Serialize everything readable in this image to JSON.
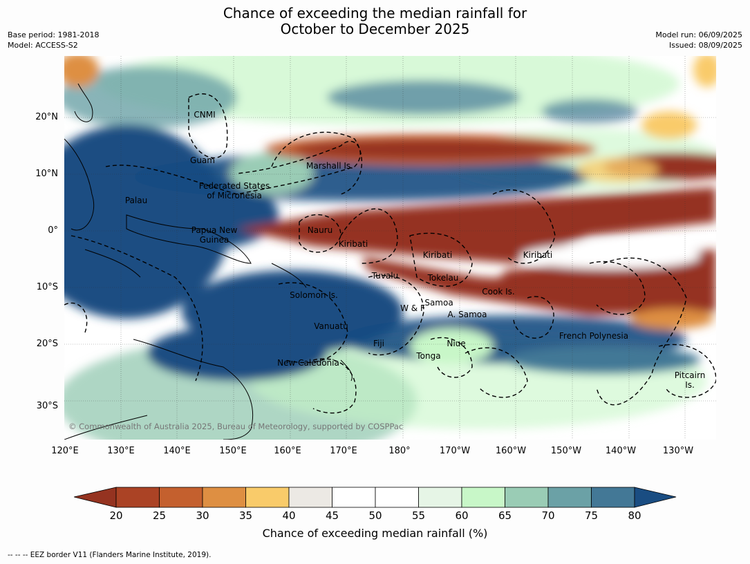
{
  "title_line1": "Chance of exceeding the median rainfall for",
  "title_line2": "October to December 2025",
  "meta_left": [
    "Base period: 1981-2018",
    "Model: ACCESS-S2"
  ],
  "meta_right": [
    "Model run: 06/09/2025",
    "Issued: 08/09/2025"
  ],
  "map": {
    "lat_ticks": [
      "20°N",
      "10°N",
      "0°",
      "10°S",
      "20°S",
      "30°S"
    ],
    "lon_ticks": [
      "120°E",
      "130°E",
      "140°E",
      "150°E",
      "160°E",
      "170°E",
      "180°",
      "170°W",
      "160°W",
      "150°W",
      "140°W",
      "130°W"
    ],
    "regions": [
      "CNMI",
      "Guam",
      "Marshall Is.",
      "Federated States\nof Micronesia",
      "Palau",
      "Papua New\nGuinea",
      "Nauru",
      "Kiribati",
      "Kiribati",
      "Kiribati",
      "Tuvalu",
      "Tokelau",
      "Cook Is.",
      "Solomon Is.",
      "Samoa",
      "W & F",
      "A. Samoa",
      "Vanuatu",
      "Fiji",
      "Niue",
      "Tonga",
      "French Polynesia",
      "New Caledonia",
      "Pitcairn\nIs."
    ],
    "copyright": "© Commonwealth of Australia 2025, Bureau of Meteorology, supported by COSPPac"
  },
  "colorbar": {
    "ticks": [
      "20",
      "25",
      "30",
      "35",
      "40",
      "45",
      "50",
      "55",
      "60",
      "65",
      "70",
      "75",
      "80"
    ],
    "colors": [
      "#953320",
      "#ab4325",
      "#c4602e",
      "#de8f42",
      "#f9cb6a",
      "#ece9e4",
      "#ffffff",
      "#ffffff",
      "#e6f5e6",
      "#c8f7c8",
      "#9accb5",
      "#6ba1a6",
      "#437896",
      "#1a4d82"
    ],
    "label": "Chance of exceeding median rainfall (%)"
  },
  "footnote": "-- -- -- EEZ border V11 (Flanders Marine Institute, 2019)."
}
